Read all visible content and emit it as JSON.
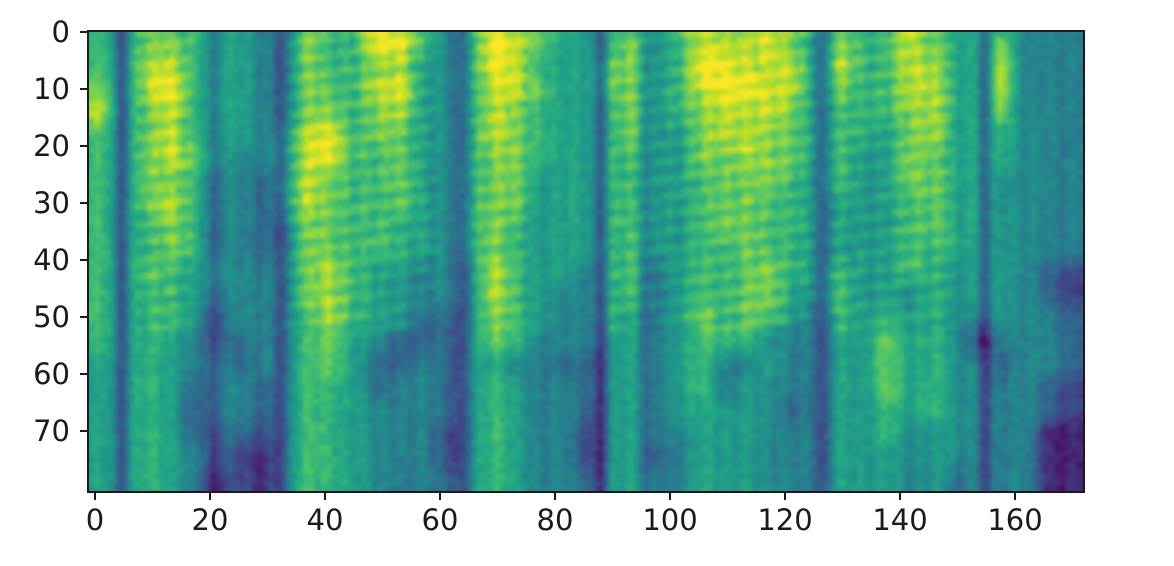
{
  "figure": {
    "background_color": "#ffffff",
    "spine_color": "#1a1a1a",
    "tick_color": "#1a1a1a"
  },
  "chart_data": {
    "type": "heatmap",
    "subtype": "mel-spectrogram",
    "title": "",
    "xlabel": "",
    "ylabel": "",
    "x_ticks": [
      0,
      20,
      40,
      60,
      80,
      100,
      120,
      140,
      160
    ],
    "y_ticks": [
      0,
      10,
      20,
      30,
      40,
      50,
      60,
      70
    ],
    "x_range": [
      0,
      172
    ],
    "y_range": [
      0,
      80
    ],
    "origin": "upper",
    "grid": false,
    "legend": "none",
    "colormap": "viridis",
    "colormap_anchors": [
      [
        68,
        1,
        84
      ],
      [
        72,
        36,
        117
      ],
      [
        65,
        68,
        135
      ],
      [
        53,
        95,
        141
      ],
      [
        42,
        120,
        142
      ],
      [
        33,
        145,
        140
      ],
      [
        34,
        168,
        132
      ],
      [
        66,
        190,
        113
      ],
      [
        122,
        209,
        81
      ],
      [
        189,
        223,
        38
      ],
      [
        253,
        231,
        37
      ]
    ],
    "value_scale_note": "grid digits 0-9 map linearly to colormap fraction 0.0-1.0",
    "grid_cols": 43,
    "grid_rows": 20,
    "cell_size_units": 4,
    "values": [
      "6577655457669964698755675688887576687656444",
      "6588655457667854698655775699888586688657444",
      "7589655457768954688755775689988576688657444",
      "8578655457767854687655675678887566678656444",
      "6578655468967754687655675578877566578656444",
      "6578754468966754677655665577877565577656444",
      "6577644368766754677555665567776565577655444",
      "6578644368766754677555665567766555567655444",
      "6567644357766654676555665567766555567655444",
      "6567644357766654676555665566766555566655444",
      "6576554457865544586554664566776565566555432",
      "6566544457865544586544664566775565546555432",
      "6566534456865533576544654576765465656545443",
      "6565433456754333576444554566644455756524443",
      "5565443456753343554433554564454455756543443",
      "5565344356653443565443554564544455756544432",
      "5565344356654443565443554555543455656544432",
      "5565333256654442565442554455544455645544411",
      "5565432156654442565442553455544455545544411",
      "5565422156654443565443554455544455545444411"
    ],
    "dark_vertical_lines": [
      {
        "x": 5.5,
        "w": 1.3,
        "s": 0.3
      },
      {
        "x": 21.5,
        "w": 1.0,
        "s": 0.16
      },
      {
        "x": 33.5,
        "w": 1.6,
        "s": 0.26
      },
      {
        "x": 64.5,
        "w": 1.6,
        "s": 0.24
      },
      {
        "x": 88.5,
        "w": 1.3,
        "s": 0.3
      },
      {
        "x": 96.5,
        "w": 1.2,
        "s": 0.16
      },
      {
        "x": 127.0,
        "w": 1.3,
        "s": 0.26
      },
      {
        "x": 150.5,
        "w": 1.0,
        "s": 0.13
      },
      {
        "x": 155.0,
        "w": 1.2,
        "s": 0.22
      }
    ],
    "bright_vertical_lines": [
      {
        "x": 158.0,
        "w": 1.4,
        "s": 0.16,
        "y0": 1,
        "y1": 15
      }
    ],
    "harmonic_striped_x_regions": [
      [
        8,
        18
      ],
      [
        34,
        60
      ],
      [
        66,
        76
      ],
      [
        90,
        126
      ],
      [
        128,
        150
      ]
    ],
    "description": "Mel spectrogram of speech, viridis colormap, ~172 time frames by 80 mel bins, y axis increasing downward"
  }
}
